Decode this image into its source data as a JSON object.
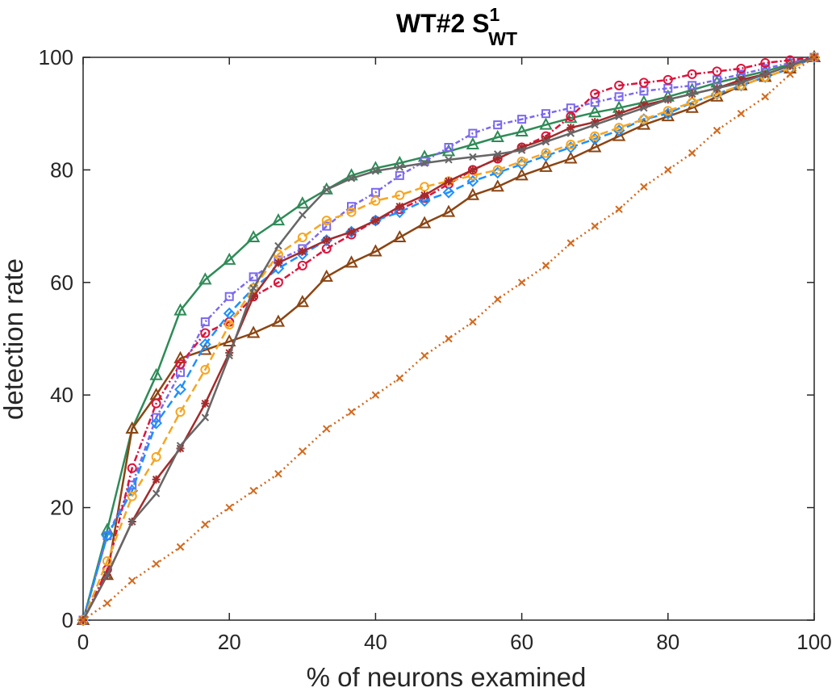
{
  "chart_data": {
    "type": "line",
    "title": {
      "main": "WT#2 S",
      "sup": "1",
      "sub": "WT"
    },
    "xlabel": "% of neurons examined",
    "ylabel": "detection rate",
    "xlim": [
      0,
      100
    ],
    "ylim": [
      0,
      100
    ],
    "xticks": [
      "0",
      "20",
      "40",
      "60",
      "80",
      "100"
    ],
    "yticks": [
      "0",
      "20",
      "40",
      "60",
      "80",
      "100"
    ],
    "grid": false,
    "legend": "none",
    "x": [
      0,
      3.3,
      6.7,
      10,
      13.3,
      16.7,
      20,
      23.3,
      26.7,
      30,
      33.3,
      36.7,
      40,
      43.3,
      46.7,
      50,
      53.3,
      56.7,
      60,
      63.3,
      66.7,
      70,
      73.3,
      76.7,
      80,
      83.3,
      86.7,
      90,
      93.3,
      96.7,
      100
    ],
    "series": [
      {
        "color": "#2e8b57",
        "marker": "triangle",
        "dash": "solid",
        "values": [
          0,
          16,
          34,
          43.5,
          55,
          60.5,
          64,
          68,
          71,
          74,
          76.5,
          79,
          80.3,
          81.2,
          82.3,
          83.3,
          84.5,
          85.8,
          86.8,
          88,
          89.2,
          90.2,
          91,
          92,
          93,
          94.2,
          95.5,
          96.5,
          97.5,
          98.8,
          100
        ]
      },
      {
        "color": "#8b4513",
        "marker": "triangle",
        "dash": "solid",
        "values": [
          0,
          8,
          34,
          40,
          46.5,
          48,
          49.5,
          51,
          53,
          56.5,
          61,
          63.5,
          65.5,
          68,
          70.5,
          72.5,
          75.5,
          77,
          79,
          80.5,
          82,
          84,
          86,
          88,
          89.5,
          91,
          93,
          95,
          96.5,
          98,
          100
        ]
      },
      {
        "color": "#7b68ee",
        "marker": "square",
        "dash": "6 3 2 3",
        "values": [
          0,
          15,
          24,
          36,
          44,
          53,
          57.5,
          61,
          64,
          66,
          70,
          73.5,
          76,
          79,
          81.5,
          84,
          86.5,
          88,
          89,
          90,
          91,
          92,
          93,
          94,
          94.5,
          95,
          96,
          97,
          98,
          99,
          100
        ]
      },
      {
        "color": "#dc143c",
        "marker": "circle",
        "dash": "8 3 2 3",
        "values": [
          0,
          9,
          27,
          38.5,
          45.5,
          51,
          53,
          57.5,
          60,
          63,
          66,
          68.5,
          71,
          73,
          75,
          77.5,
          80,
          82,
          84,
          86,
          89.5,
          93.5,
          95,
          95.5,
          96,
          97,
          97.5,
          98,
          99,
          99.5,
          100
        ]
      },
      {
        "color": "#1e90ff",
        "marker": "diamond",
        "dash": "10 5",
        "values": [
          0,
          15,
          23,
          35,
          41,
          49,
          54.5,
          59,
          62.5,
          65,
          67.5,
          69,
          71,
          72.5,
          74.5,
          76,
          78,
          79.5,
          81,
          82.5,
          84,
          85.5,
          87,
          89,
          90,
          92,
          93.5,
          95,
          96.5,
          98,
          100
        ]
      },
      {
        "color": "#f5a623",
        "marker": "circle",
        "dash": "10 5",
        "values": [
          0,
          10.5,
          22,
          29,
          37,
          44.5,
          52.5,
          59,
          65,
          68,
          71,
          72.5,
          74.5,
          75.5,
          77,
          78,
          79,
          80,
          81.5,
          83,
          84.5,
          86,
          87.5,
          89,
          90.5,
          92,
          93.5,
          95,
          96.5,
          98,
          100
        ]
      },
      {
        "color": "#a52a2a",
        "marker": "star",
        "dash": "solid",
        "values": [
          0,
          8,
          17.5,
          25,
          30.5,
          38.5,
          47.5,
          57.5,
          63.5,
          65.5,
          67.5,
          69,
          71,
          73.5,
          75.5,
          78,
          80,
          82,
          84,
          85.5,
          87.5,
          88.5,
          90,
          91.5,
          92.5,
          93.5,
          94.5,
          96,
          97,
          98.5,
          100
        ]
      },
      {
        "color": "#666666",
        "marker": "x",
        "dash": "solid",
        "values": [
          0,
          8,
          17.5,
          22.5,
          31,
          36,
          47,
          59,
          66.5,
          72,
          76.5,
          78.5,
          79.8,
          80.5,
          81.2,
          81.8,
          82.3,
          82.8,
          83.5,
          85,
          86.5,
          88,
          89.5,
          91,
          92.5,
          93.5,
          94.5,
          95.5,
          97,
          98.5,
          100
        ]
      },
      {
        "color": "#d2691e",
        "marker": "x",
        "dash": "2 4",
        "values": [
          0,
          3,
          7,
          10,
          13,
          17,
          20,
          23,
          26,
          30,
          34,
          37,
          40,
          43,
          47,
          50,
          53,
          57,
          60,
          63,
          67,
          70,
          73,
          77,
          80,
          83,
          87,
          90,
          93,
          97,
          100
        ]
      }
    ]
  }
}
